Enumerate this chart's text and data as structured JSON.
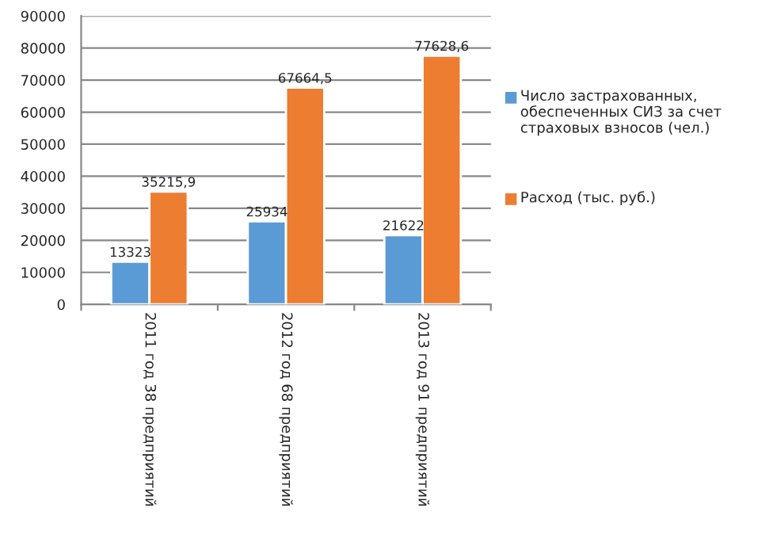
{
  "chart_data": {
    "type": "bar",
    "categories": [
      "2011 год 38 предприятий",
      "2012 год 68 предприятий",
      "2013 год 91 предприятий"
    ],
    "series": [
      {
        "name": "Число застрахованных, обеспеченных СИЗ за счет страховых взносов (чел.)",
        "color": "#5b9bd5",
        "values": [
          13323,
          25934,
          21622
        ],
        "value_labels": [
          "13323",
          "25934",
          "21622"
        ]
      },
      {
        "name": "Расход (тыс. руб.)",
        "color": "#ed7d31",
        "values": [
          35215.9,
          67664.5,
          77628.6
        ],
        "value_labels": [
          "35215,9",
          "67664,5",
          "77628,6"
        ]
      }
    ],
    "ylim": [
      0,
      90000
    ],
    "yticks": [
      0,
      10000,
      20000,
      30000,
      40000,
      50000,
      60000,
      70000,
      80000,
      90000
    ],
    "grid": "y",
    "legend": "right"
  }
}
